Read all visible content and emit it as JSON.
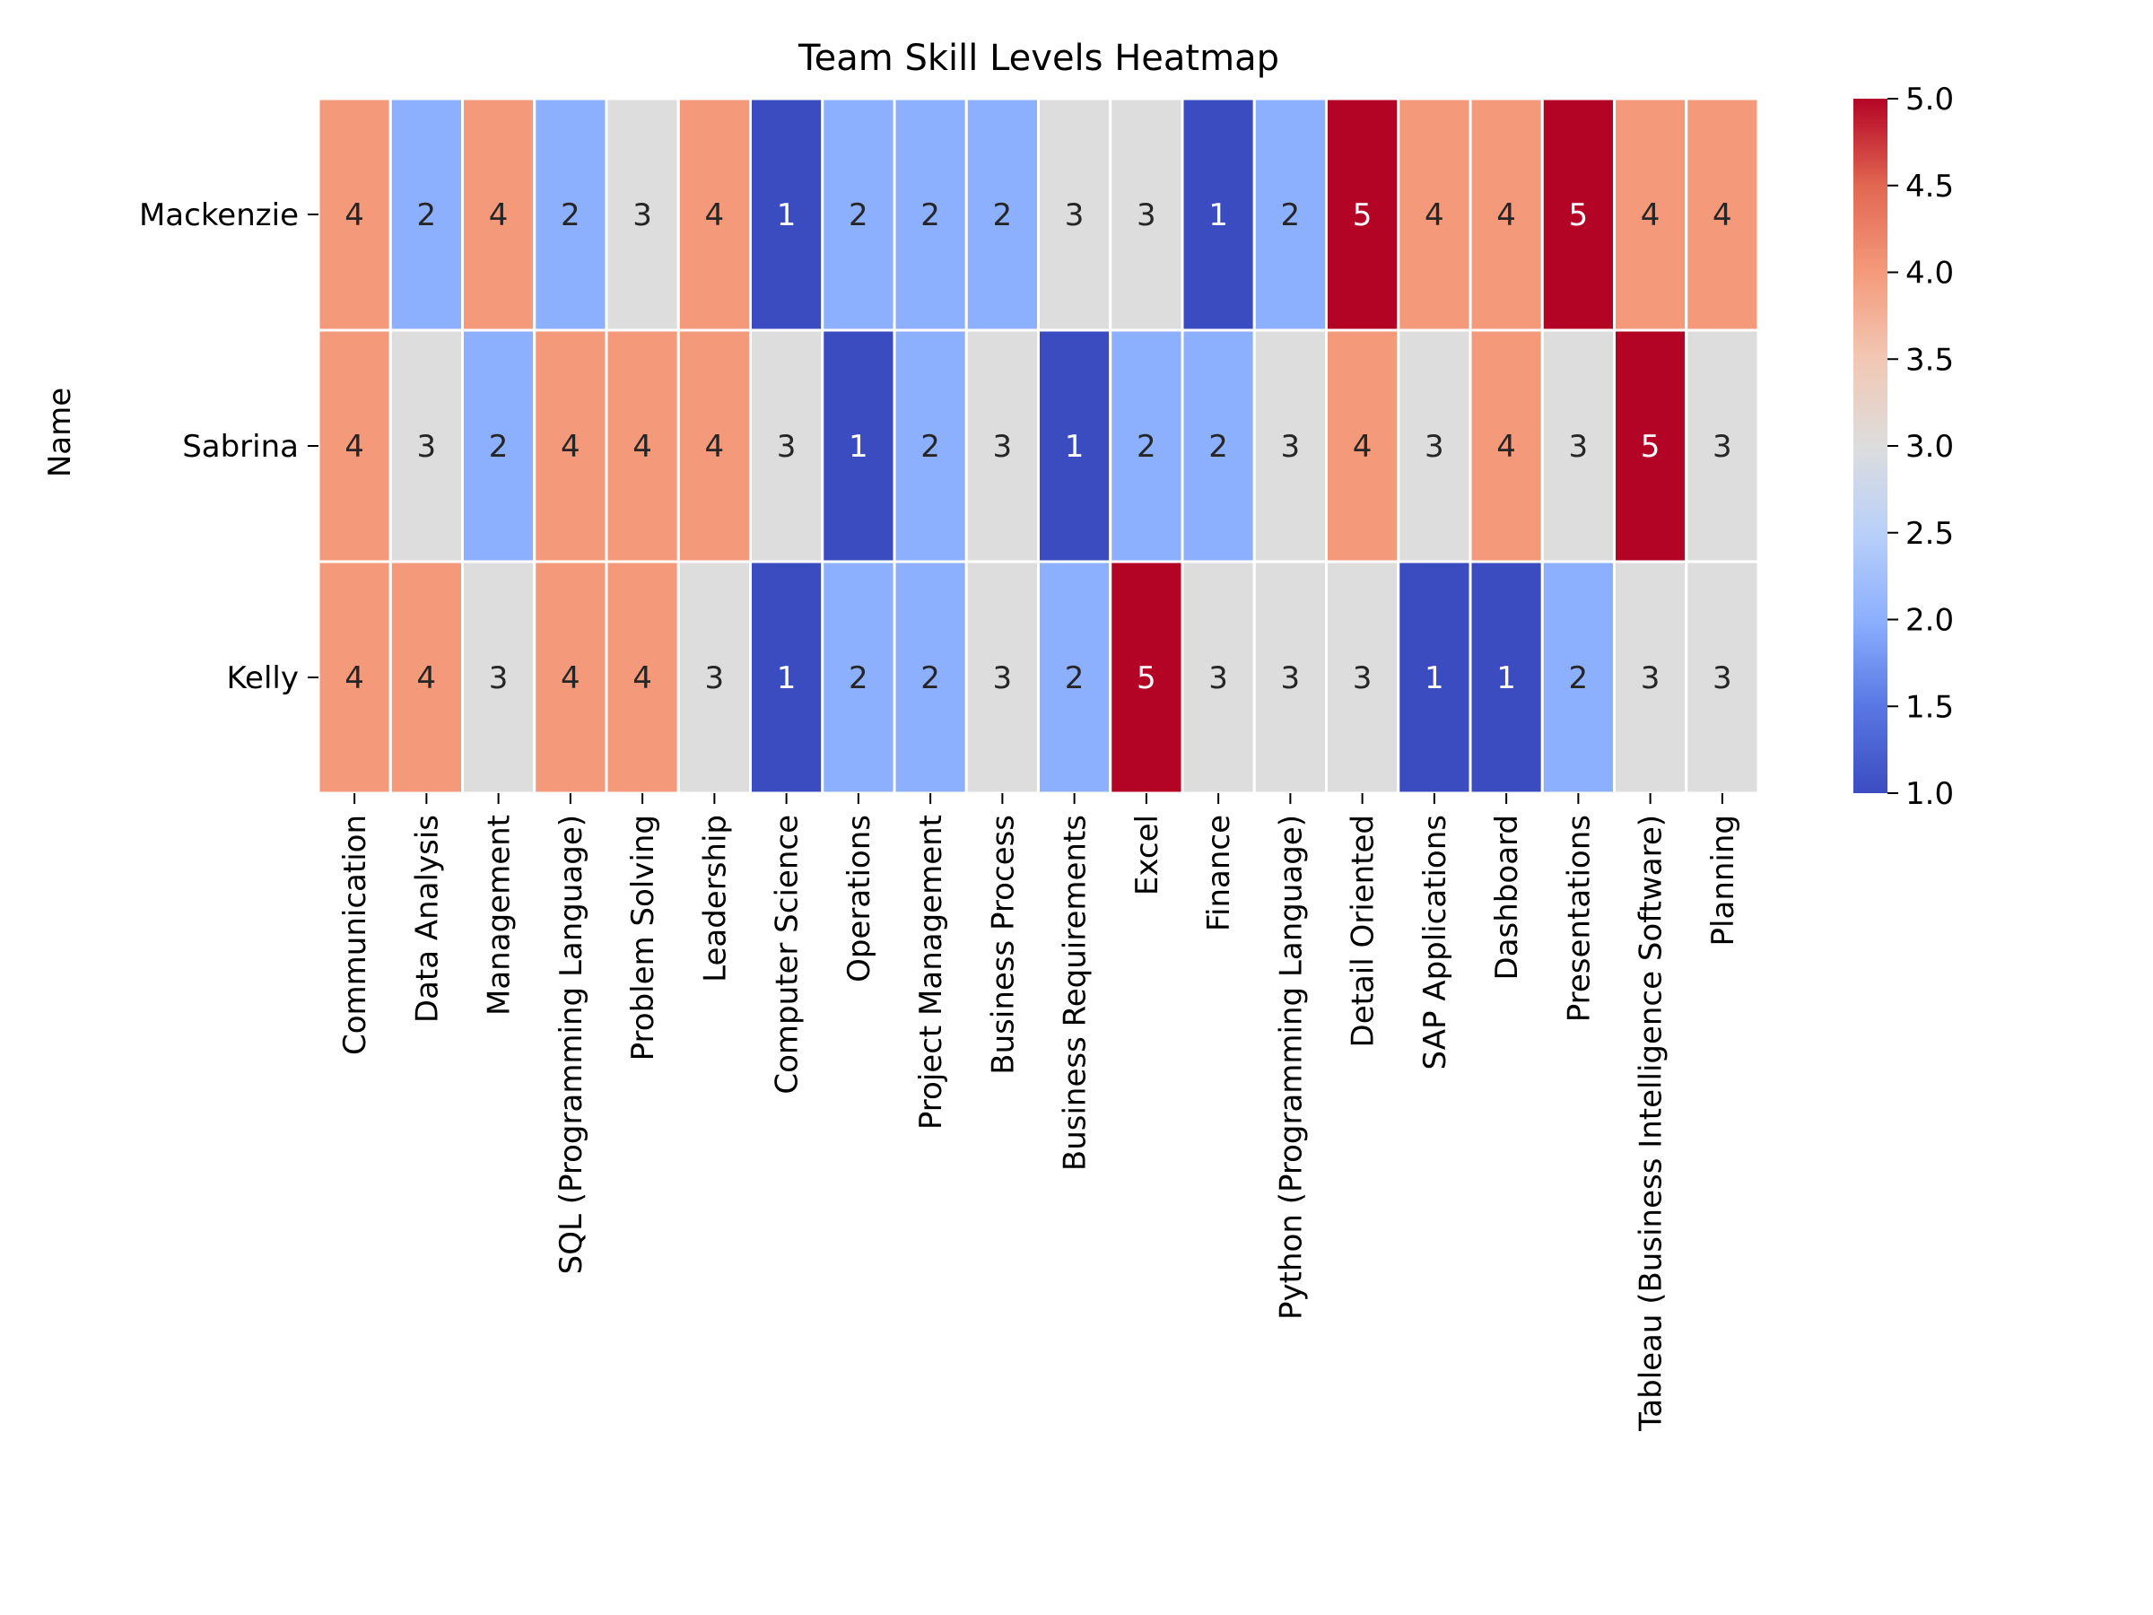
{
  "chart_data": {
    "type": "heatmap",
    "title": "Team Skill Levels Heatmap",
    "xlabel": "",
    "ylabel": "Name",
    "rows": [
      "Mackenzie",
      "Sabrina",
      "Kelly"
    ],
    "columns": [
      "Communication",
      "Data Analysis",
      "Management",
      "SQL (Programming Language)",
      "Problem Solving",
      "Leadership",
      "Computer Science",
      "Operations",
      "Project Management",
      "Business Process",
      "Business Requirements",
      "Excel",
      "Finance",
      "Python (Programming Language)",
      "Detail Oriented",
      "SAP Applications",
      "Dashboard",
      "Presentations",
      "Tableau (Business Intelligence Software)",
      "Planning"
    ],
    "values": [
      [
        4,
        2,
        4,
        2,
        3,
        4,
        1,
        2,
        2,
        2,
        3,
        3,
        1,
        2,
        5,
        4,
        4,
        5,
        4,
        4
      ],
      [
        4,
        3,
        2,
        4,
        4,
        4,
        3,
        1,
        2,
        3,
        1,
        2,
        2,
        3,
        4,
        3,
        4,
        3,
        5,
        3
      ],
      [
        4,
        4,
        3,
        4,
        4,
        3,
        1,
        2,
        2,
        3,
        2,
        5,
        3,
        3,
        3,
        1,
        1,
        2,
        3,
        3
      ]
    ],
    "colorbar": {
      "min": 1.0,
      "max": 5.0,
      "ticks": [
        "1.0",
        "1.5",
        "2.0",
        "2.5",
        "3.0",
        "3.5",
        "4.0",
        "4.5",
        "5.0"
      ]
    },
    "colormap": "coolwarm",
    "colors": {
      "1": "#3b4cc0",
      "2": "#8db0fe",
      "3": "#dddddd",
      "4": "#f49a7b",
      "5": "#b40426"
    },
    "annotated": true
  }
}
